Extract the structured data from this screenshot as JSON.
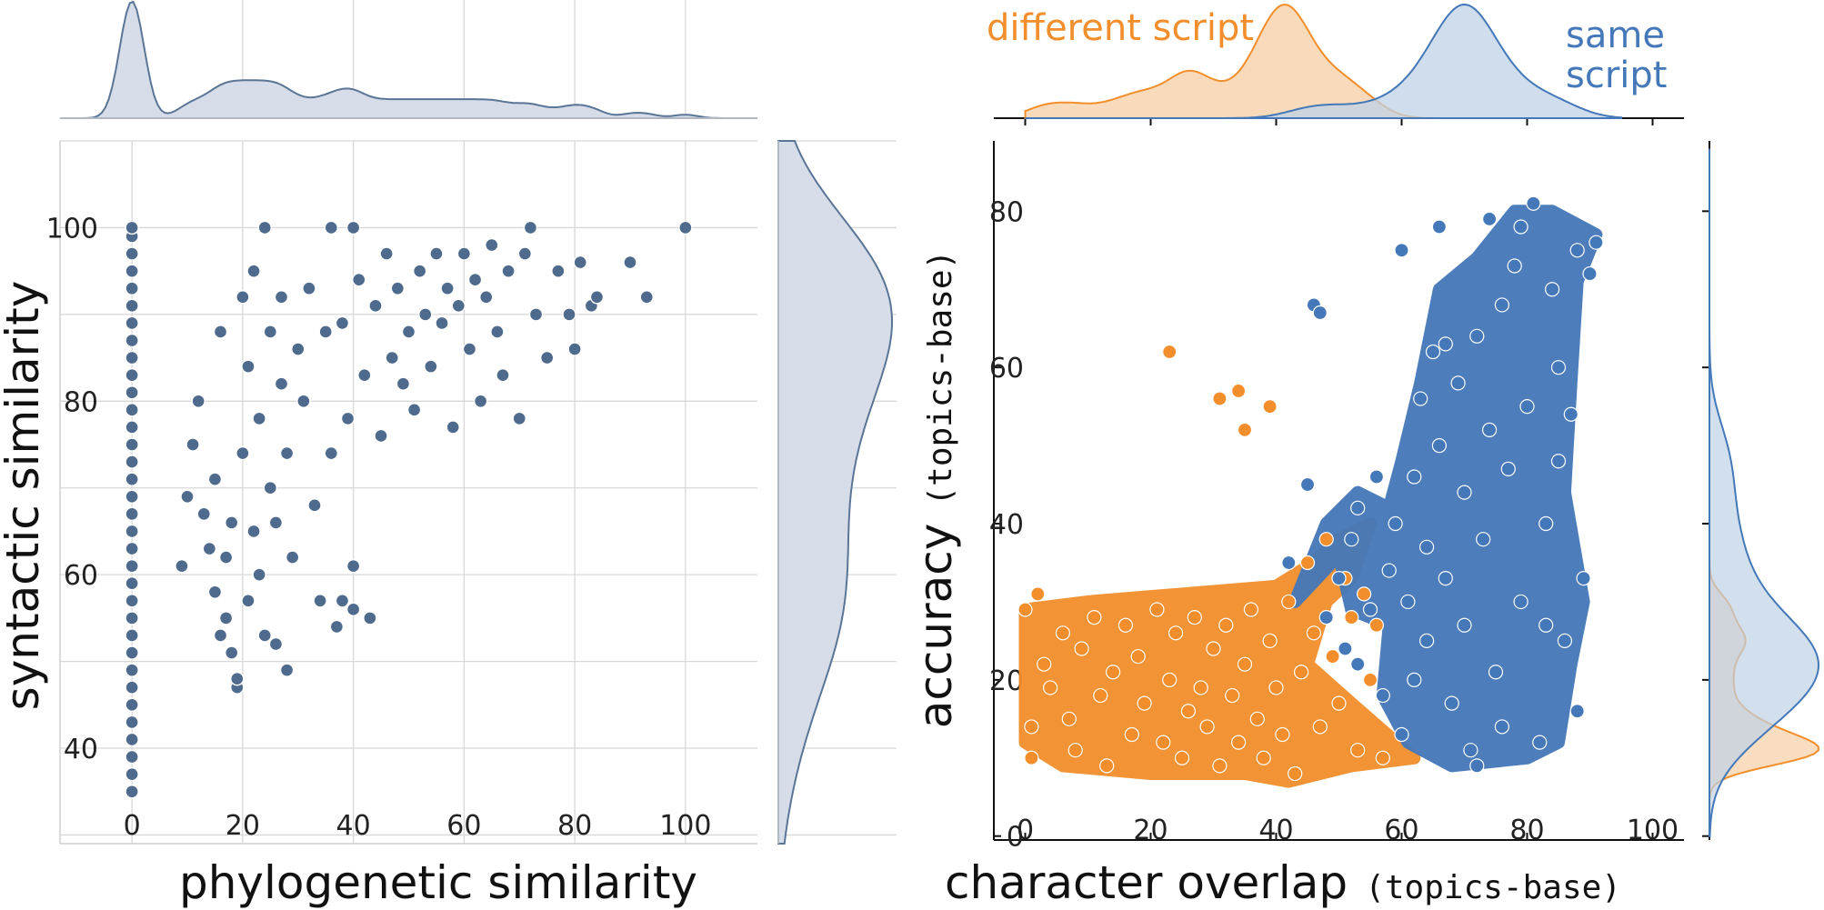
{
  "chart_data": [
    {
      "id": "left",
      "type": "scatter",
      "xlabel": "phylogenetic similarity",
      "ylabel": "syntactic similarity",
      "xlim": [
        -13,
        113
      ],
      "ylim": [
        29,
        110
      ],
      "xticks": [
        0,
        20,
        40,
        60,
        80,
        100
      ],
      "yticks": [
        40,
        60,
        80,
        100
      ],
      "grid": true,
      "color": "#4e6a8c",
      "points": [
        [
          0,
          35
        ],
        [
          0,
          37
        ],
        [
          0,
          39
        ],
        [
          0,
          41
        ],
        [
          0,
          43
        ],
        [
          0,
          45
        ],
        [
          0,
          47
        ],
        [
          0,
          49
        ],
        [
          0,
          51
        ],
        [
          0,
          53
        ],
        [
          0,
          55
        ],
        [
          0,
          57
        ],
        [
          0,
          59
        ],
        [
          0,
          61
        ],
        [
          0,
          63
        ],
        [
          0,
          65
        ],
        [
          0,
          67
        ],
        [
          0,
          69
        ],
        [
          0,
          71
        ],
        [
          0,
          73
        ],
        [
          0,
          75
        ],
        [
          0,
          77
        ],
        [
          0,
          79
        ],
        [
          0,
          81
        ],
        [
          0,
          83
        ],
        [
          0,
          85
        ],
        [
          0,
          87
        ],
        [
          0,
          89
        ],
        [
          0,
          91
        ],
        [
          0,
          93
        ],
        [
          0,
          95
        ],
        [
          0,
          97
        ],
        [
          0,
          99
        ],
        [
          0,
          100
        ],
        [
          9,
          61
        ],
        [
          10,
          69
        ],
        [
          11,
          75
        ],
        [
          12,
          80
        ],
        [
          13,
          67
        ],
        [
          14,
          63
        ],
        [
          15,
          71
        ],
        [
          15,
          58
        ],
        [
          16,
          53
        ],
        [
          16,
          88
        ],
        [
          17,
          55
        ],
        [
          17,
          62
        ],
        [
          18,
          51
        ],
        [
          18,
          66
        ],
        [
          19,
          47
        ],
        [
          19,
          48
        ],
        [
          20,
          74
        ],
        [
          20,
          92
        ],
        [
          21,
          57
        ],
        [
          21,
          84
        ],
        [
          22,
          65
        ],
        [
          22,
          95
        ],
        [
          23,
          60
        ],
        [
          23,
          78
        ],
        [
          24,
          100
        ],
        [
          24,
          53
        ],
        [
          25,
          70
        ],
        [
          25,
          88
        ],
        [
          26,
          52
        ],
        [
          26,
          66
        ],
        [
          27,
          82
        ],
        [
          27,
          92
        ],
        [
          28,
          49
        ],
        [
          28,
          74
        ],
        [
          29,
          62
        ],
        [
          30,
          86
        ],
        [
          31,
          80
        ],
        [
          32,
          93
        ],
        [
          33,
          68
        ],
        [
          34,
          57
        ],
        [
          35,
          88
        ],
        [
          36,
          100
        ],
        [
          36,
          74
        ],
        [
          37,
          54
        ],
        [
          38,
          57
        ],
        [
          38,
          89
        ],
        [
          39,
          78
        ],
        [
          40,
          100
        ],
        [
          40,
          61
        ],
        [
          40,
          56
        ],
        [
          41,
          94
        ],
        [
          42,
          83
        ],
        [
          43,
          55
        ],
        [
          44,
          91
        ],
        [
          45,
          76
        ],
        [
          46,
          97
        ],
        [
          47,
          85
        ],
        [
          48,
          93
        ],
        [
          49,
          82
        ],
        [
          50,
          88
        ],
        [
          51,
          79
        ],
        [
          52,
          95
        ],
        [
          53,
          90
        ],
        [
          54,
          84
        ],
        [
          55,
          97
        ],
        [
          56,
          89
        ],
        [
          57,
          93
        ],
        [
          58,
          77
        ],
        [
          59,
          91
        ],
        [
          60,
          97
        ],
        [
          61,
          86
        ],
        [
          62,
          94
        ],
        [
          63,
          80
        ],
        [
          64,
          92
        ],
        [
          65,
          98
        ],
        [
          66,
          88
        ],
        [
          67,
          83
        ],
        [
          68,
          95
        ],
        [
          70,
          78
        ],
        [
          71,
          97
        ],
        [
          72,
          100
        ],
        [
          73,
          90
        ],
        [
          75,
          85
        ],
        [
          77,
          95
        ],
        [
          79,
          90
        ],
        [
          80,
          86
        ],
        [
          81,
          96
        ],
        [
          83,
          91
        ],
        [
          84,
          92
        ],
        [
          90,
          96
        ],
        [
          93,
          92
        ],
        [
          100,
          100
        ]
      ]
    },
    {
      "id": "right",
      "type": "scatter",
      "xlabel": "character overlap",
      "xlabel_mono": "(topics-base)",
      "ylabel": "accuracy",
      "ylabel_mono": "(topics-base)",
      "xlim": [
        -5,
        105
      ],
      "ylim": [
        -0.5,
        89
      ],
      "xticks": [
        0,
        20,
        40,
        60,
        80,
        100
      ],
      "yticks": [
        0,
        20,
        40,
        60,
        80
      ],
      "grid": false,
      "series": [
        {
          "name": "different script",
          "color": "#f28e2b",
          "points": [
            [
              0,
              29
            ],
            [
              2,
              31
            ],
            [
              1,
              14
            ],
            [
              1,
              10
            ],
            [
              3,
              22
            ],
            [
              4,
              19
            ],
            [
              6,
              26
            ],
            [
              7,
              15
            ],
            [
              8,
              11
            ],
            [
              9,
              24
            ],
            [
              11,
              28
            ],
            [
              12,
              18
            ],
            [
              13,
              9
            ],
            [
              14,
              21
            ],
            [
              16,
              27
            ],
            [
              17,
              13
            ],
            [
              18,
              23
            ],
            [
              19,
              17
            ],
            [
              21,
              29
            ],
            [
              22,
              12
            ],
            [
              23,
              20
            ],
            [
              24,
              26
            ],
            [
              25,
              10
            ],
            [
              26,
              16
            ],
            [
              27,
              28
            ],
            [
              28,
              19
            ],
            [
              29,
              14
            ],
            [
              30,
              24
            ],
            [
              31,
              9
            ],
            [
              32,
              27
            ],
            [
              33,
              18
            ],
            [
              34,
              12
            ],
            [
              35,
              22
            ],
            [
              36,
              29
            ],
            [
              37,
              15
            ],
            [
              38,
              10
            ],
            [
              39,
              25
            ],
            [
              40,
              19
            ],
            [
              41,
              13
            ],
            [
              42,
              30
            ],
            [
              43,
              8
            ],
            [
              44,
              21
            ],
            [
              45,
              35
            ],
            [
              46,
              26
            ],
            [
              47,
              14
            ],
            [
              48,
              38
            ],
            [
              49,
              23
            ],
            [
              50,
              17
            ],
            [
              51,
              33
            ],
            [
              52,
              28
            ],
            [
              53,
              11
            ],
            [
              54,
              31
            ],
            [
              55,
              20
            ],
            [
              56,
              27
            ],
            [
              57,
              10
            ],
            [
              31,
              56
            ],
            [
              34,
              57
            ],
            [
              35,
              52
            ],
            [
              39,
              55
            ],
            [
              23,
              62
            ]
          ]
        },
        {
          "name": "same script",
          "color": "#4478b8",
          "points": [
            [
              42,
              35
            ],
            [
              45,
              45
            ],
            [
              46,
              68
            ],
            [
              47,
              67
            ],
            [
              48,
              28
            ],
            [
              50,
              33
            ],
            [
              51,
              24
            ],
            [
              52,
              38
            ],
            [
              53,
              42
            ],
            [
              55,
              29
            ],
            [
              57,
              18
            ],
            [
              58,
              34
            ],
            [
              59,
              40
            ],
            [
              60,
              13
            ],
            [
              61,
              30
            ],
            [
              62,
              46
            ],
            [
              63,
              56
            ],
            [
              64,
              25
            ],
            [
              65,
              62
            ],
            [
              66,
              50
            ],
            [
              67,
              33
            ],
            [
              68,
              17
            ],
            [
              69,
              58
            ],
            [
              70,
              44
            ],
            [
              71,
              11
            ],
            [
              72,
              64
            ],
            [
              73,
              38
            ],
            [
              74,
              52
            ],
            [
              75,
              21
            ],
            [
              76,
              68
            ],
            [
              77,
              47
            ],
            [
              78,
              73
            ],
            [
              79,
              30
            ],
            [
              80,
              55
            ],
            [
              81,
              81
            ],
            [
              82,
              12
            ],
            [
              83,
              40
            ],
            [
              84,
              70
            ],
            [
              85,
              60
            ],
            [
              86,
              25
            ],
            [
              87,
              54
            ],
            [
              88,
              75
            ],
            [
              88,
              16
            ],
            [
              89,
              33
            ],
            [
              90,
              72
            ],
            [
              91,
              76
            ],
            [
              60,
              75
            ],
            [
              66,
              78
            ],
            [
              74,
              79
            ],
            [
              79,
              78
            ],
            [
              53,
              22
            ],
            [
              56,
              46
            ],
            [
              62,
              20
            ],
            [
              67,
              63
            ],
            [
              70,
              27
            ],
            [
              76,
              14
            ],
            [
              83,
              27
            ],
            [
              85,
              48
            ],
            [
              64,
              37
            ],
            [
              72,
              9
            ]
          ]
        }
      ]
    }
  ],
  "legend": {
    "different_script": "different script",
    "same_script_1": "same",
    "same_script_2": "script"
  }
}
